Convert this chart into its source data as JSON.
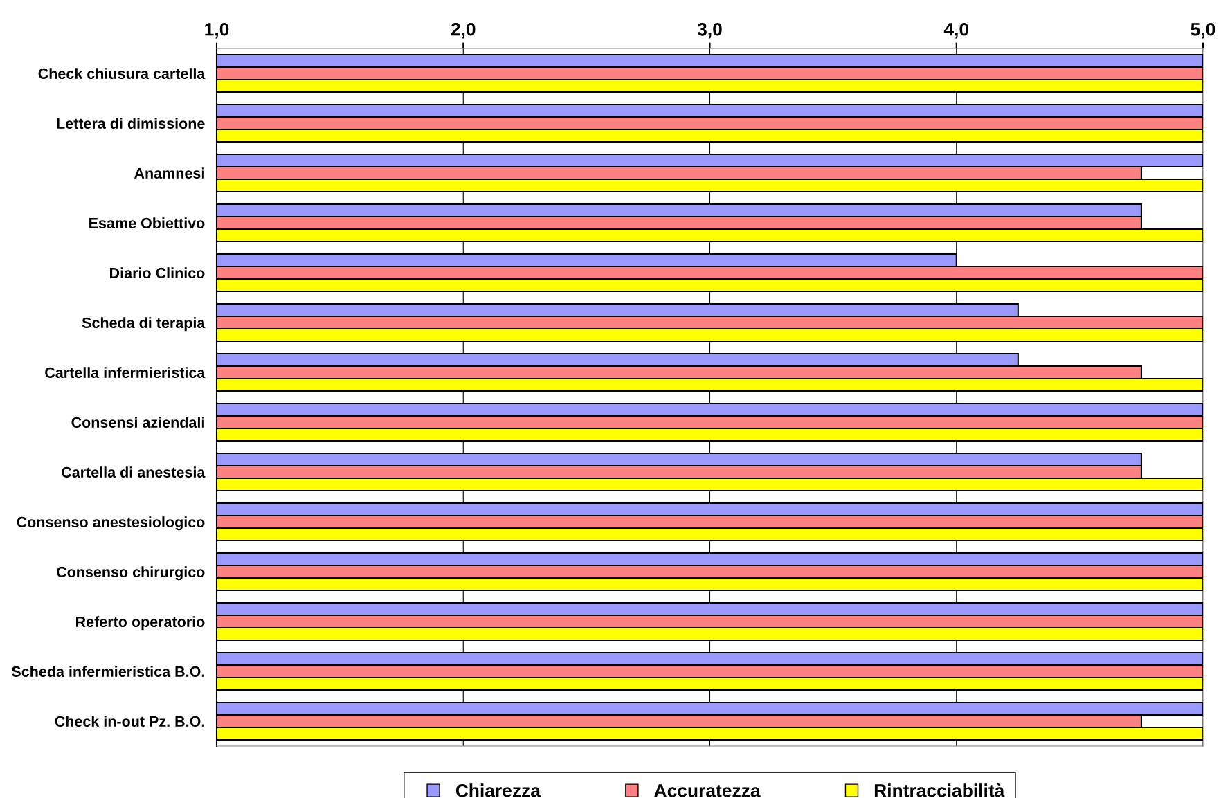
{
  "chart_data": {
    "type": "bar",
    "orientation": "horizontal",
    "categories": [
      "Check chiusura cartella",
      "Lettera di dimissione",
      "Anamnesi",
      "Esame Obiettivo",
      "Diario Clinico",
      "Scheda di terapia",
      "Cartella infermieristica",
      "Consensi aziendali",
      "Cartella di anestesia",
      "Consenso anestesiologico",
      "Consenso chirurgico",
      "Referto operatorio",
      "Scheda infermieristica B.O.",
      "Check in-out Pz. B.O."
    ],
    "series": [
      {
        "name": "Chiarezza",
        "color": "#9999ff",
        "values": [
          5,
          5,
          5,
          4.75,
          4.0,
          4.25,
          4.25,
          5,
          4.75,
          5,
          5,
          5,
          5,
          5
        ]
      },
      {
        "name": "Accuratezza",
        "color": "#ff8080",
        "values": [
          5,
          5,
          4.75,
          4.75,
          5,
          5,
          4.75,
          5,
          4.75,
          5,
          5,
          5,
          5,
          4.75
        ]
      },
      {
        "name": "Rintracciabilità",
        "color": "#ffff00",
        "values": [
          5,
          5,
          5,
          5,
          5,
          5,
          5,
          5,
          5,
          5,
          5,
          5,
          5,
          5
        ]
      }
    ],
    "xlim": [
      1,
      5
    ],
    "xticks": [
      {
        "value": 1,
        "label": "1,0"
      },
      {
        "value": 2,
        "label": "2,0"
      },
      {
        "value": 3,
        "label": "3,0"
      },
      {
        "value": 4,
        "label": "4,0"
      },
      {
        "value": 5,
        "label": "5,0"
      }
    ],
    "grid": "x",
    "legend": "bottom"
  }
}
